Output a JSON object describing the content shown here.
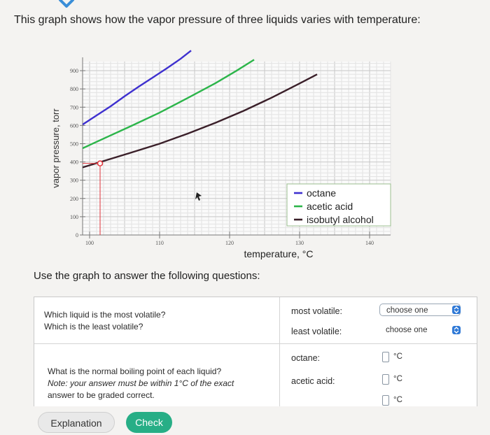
{
  "prompt": "This graph shows how the vapor pressure of three liquids varies with temperature:",
  "instructions": "Use the graph to answer the following questions:",
  "chart_data": {
    "type": "line",
    "xlabel": "temperature, °C",
    "ylabel": "vapor pressure, torr",
    "xlim": [
      99,
      143
    ],
    "ylim": [
      0,
      950
    ],
    "x_ticks": [
      100,
      110,
      120,
      130,
      140
    ],
    "y_ticks": [
      0,
      100,
      200,
      300,
      400,
      500,
      600,
      700,
      800,
      900
    ],
    "grid": true,
    "legend_position": "bottom-right",
    "series": [
      {
        "name": "octane",
        "color": "#3e30cf",
        "x": [
          99,
          101,
          103,
          105,
          107,
          109,
          111,
          113,
          114.5
        ],
        "y": [
          605,
          655,
          705,
          760,
          812,
          862,
          912,
          965,
          1010
        ]
      },
      {
        "name": "acetic acid",
        "color": "#2cb54a",
        "x": [
          99,
          102,
          106,
          110,
          114,
          118,
          121,
          123.5
        ],
        "y": [
          475,
          528,
          598,
          670,
          750,
          832,
          900,
          960
        ]
      },
      {
        "name": "isobutyl alcohol",
        "color": "#3a1f29",
        "x": [
          99,
          102,
          106,
          110,
          114,
          118,
          122,
          126,
          130,
          132.5
        ],
        "y": [
          370,
          405,
          452,
          500,
          555,
          615,
          680,
          752,
          830,
          880
        ]
      }
    ],
    "marker": {
      "x": 101.5,
      "y": 392
    }
  },
  "questions": [
    {
      "prompt_lines": [
        "Which liquid is the most volatile?",
        "Which is the least volatile?"
      ],
      "answers": [
        {
          "label": "most volatile:",
          "value": "choose one"
        },
        {
          "label": "least volatile:",
          "value": "choose one"
        }
      ]
    },
    {
      "prompt_lines": [
        "What is the normal boiling point of each liquid?",
        "Note: your answer must be within 1°C of the exact",
        "answer to be graded correct."
      ],
      "answers": [
        {
          "label": "octane:",
          "unit": "°C"
        },
        {
          "label": "acetic acid:",
          "unit": "°C"
        },
        {
          "unit": "°C"
        }
      ]
    }
  ],
  "buttons": {
    "explanation": "Explanation",
    "check": "Check"
  },
  "colors": {
    "accent": "#2f79d6",
    "check": "#27ae86",
    "marker": "#e0333a"
  },
  "icons": [
    "chevron-down-icon",
    "up-down-arrows-icon"
  ]
}
